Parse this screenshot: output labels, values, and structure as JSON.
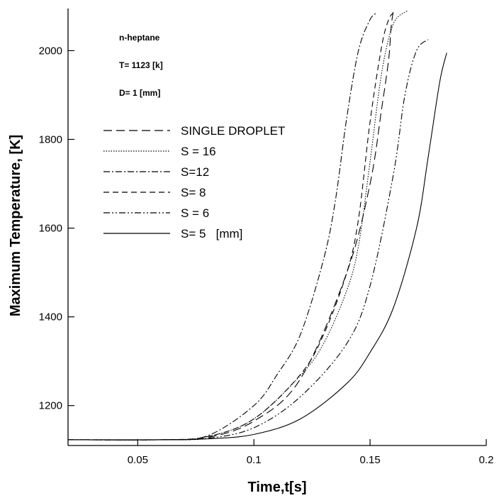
{
  "chart_data": {
    "type": "line",
    "title": "",
    "xlabel": "Time,t[s]",
    "ylabel": "Maximum Temperature, [K]",
    "xlim": [
      0.02,
      0.2
    ],
    "ylim": [
      1110,
      2095
    ],
    "xticks": [
      {
        "value": 0.05,
        "label": "0.05"
      },
      {
        "value": 0.1,
        "label": "0.1"
      },
      {
        "value": 0.15,
        "label": "0.15"
      },
      {
        "value": 0.2,
        "label": "0.2"
      }
    ],
    "yticks": [
      {
        "value": 1200,
        "label": "1200"
      },
      {
        "value": 1400,
        "label": "1400"
      },
      {
        "value": 1600,
        "label": "1600"
      },
      {
        "value": 1800,
        "label": "1800"
      },
      {
        "value": 2000,
        "label": "2000"
      }
    ],
    "grid": false,
    "legend_position": "upper-left",
    "annotations": [
      "n-heptane",
      "T= 1123 [k]",
      "D= 1 [mm]"
    ],
    "series": [
      {
        "name": "SINGLE DROPLET",
        "dash": "12,6",
        "x": [
          0.02,
          0.06,
          0.08,
          0.1,
          0.12,
          0.14,
          0.15,
          0.155,
          0.158,
          0.159,
          0.16
        ],
        "y": [
          1123,
          1123,
          1128,
          1165,
          1260,
          1500,
          1700,
          1870,
          1980,
          2050,
          2090
        ]
      },
      {
        "name": "S = 16",
        "dash": "1.5,2",
        "x": [
          0.02,
          0.06,
          0.08,
          0.1,
          0.12,
          0.13,
          0.14,
          0.145,
          0.15,
          0.155,
          0.16,
          0.166
        ],
        "y": [
          1123,
          1123,
          1130,
          1170,
          1268,
          1340,
          1460,
          1560,
          1750,
          1950,
          2060,
          2090
        ]
      },
      {
        "name": "S=12",
        "dash": "9,3,2,3",
        "x": [
          0.02,
          0.06,
          0.08,
          0.1,
          0.11,
          0.12,
          0.13,
          0.135,
          0.14,
          0.145,
          0.15,
          0.153
        ],
        "y": [
          1123,
          1123,
          1132,
          1200,
          1270,
          1360,
          1530,
          1660,
          1850,
          2000,
          2070,
          2085
        ]
      },
      {
        "name": "S= 8",
        "dash": "8,5",
        "x": [
          0.02,
          0.06,
          0.08,
          0.1,
          0.12,
          0.13,
          0.14,
          0.145,
          0.15,
          0.155,
          0.158,
          0.16
        ],
        "y": [
          1123,
          1123,
          1130,
          1170,
          1270,
          1360,
          1500,
          1620,
          1840,
          2010,
          2070,
          2085
        ]
      },
      {
        "name": "S = 6",
        "dash": "9,3,2,3,2,3",
        "x": [
          0.02,
          0.06,
          0.08,
          0.1,
          0.12,
          0.14,
          0.15,
          0.16,
          0.165,
          0.17,
          0.175
        ],
        "y": [
          1123,
          1123,
          1126,
          1150,
          1220,
          1340,
          1470,
          1720,
          1900,
          2000,
          2025
        ]
      },
      {
        "name": "S= 5   [mm]",
        "dash": "",
        "x": [
          0.02,
          0.06,
          0.08,
          0.1,
          0.12,
          0.14,
          0.15,
          0.16,
          0.17,
          0.175,
          0.18,
          0.183
        ],
        "y": [
          1123,
          1123,
          1125,
          1135,
          1170,
          1250,
          1320,
          1420,
          1600,
          1760,
          1930,
          1995
        ]
      }
    ]
  }
}
